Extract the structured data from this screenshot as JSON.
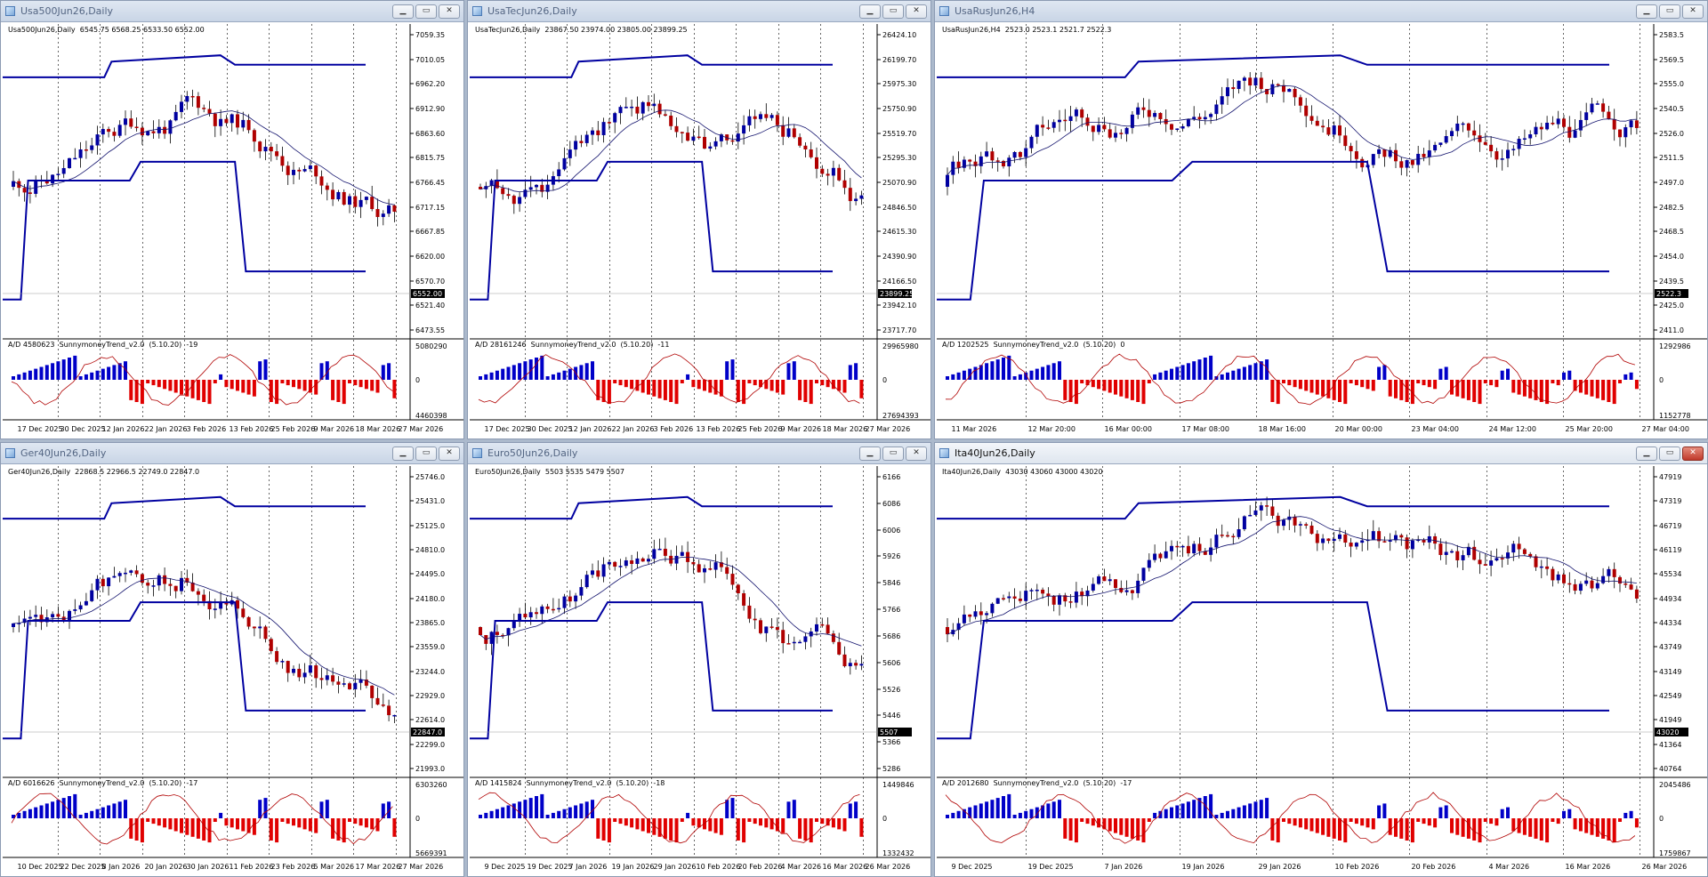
{
  "colors": {
    "bull": "#0000a0",
    "bear": "#b00000",
    "ma": "#14146e",
    "trend": "#0000a0",
    "ad": "#b00000",
    "histUp": "#0000c8",
    "histDown": "#e00000"
  },
  "windows": [
    {
      "title": "Usa500Jun26,Daily",
      "header": "Usa500Jun26,Daily  6545.75 6568.25 6533.50 6552.00",
      "ind_header": "A/D 4580623  SunnymoneyTrend_v2.0  (5.10.20)  -19",
      "price_ticks": [
        "7059.35",
        "7010.05",
        "6962.20",
        "6912.90",
        "6863.60",
        "6815.75",
        "6766.45",
        "6717.15",
        "6667.85",
        "6620.00",
        "6570.70",
        "6521.40",
        "6473.55"
      ],
      "last_price": "6552.00",
      "ind_ticks": [
        "5080290",
        "0",
        "4460398"
      ],
      "date_ticks": [
        "17 Dec 2025",
        "30 Dec 2025",
        "12 Jan 2026",
        "22 Jan 2026",
        "3 Feb 2026",
        "13 Feb 2026",
        "25 Feb 2026",
        "9 Mar 2026",
        "18 Mar 2026",
        "27 Mar 2026"
      ],
      "active": false
    },
    {
      "title": "UsaTecJun26,Daily",
      "header": "UsaTecJun26,Daily  23867.50 23974.00 23805.00 23899.25",
      "ind_header": "A/D 28161246  SunnymoneyTrend_v2.0  (5.10.20)  -11",
      "price_ticks": [
        "26424.10",
        "26199.70",
        "25975.30",
        "25750.90",
        "25519.70",
        "25295.30",
        "25070.90",
        "24846.50",
        "24615.30",
        "24390.90",
        "24166.50",
        "23942.10",
        "23717.70"
      ],
      "last_price": "23899.25",
      "ind_ticks": [
        "29965980",
        "0",
        "27694393"
      ],
      "date_ticks": [
        "17 Dec 2025",
        "30 Dec 2025",
        "12 Jan 2026",
        "22 Jan 2026",
        "3 Feb 2026",
        "13 Feb 2026",
        "25 Feb 2026",
        "9 Mar 2026",
        "18 Mar 2026",
        "27 Mar 2026"
      ],
      "active": false
    },
    {
      "title": "UsaRusJun26,H4",
      "header": "UsaRusJun26,H4  2523.0 2523.1 2521.7 2522.3",
      "ind_header": "A/D 1202525  SunnymoneyTrend_v2.0  (5.10.20)  0",
      "price_ticks": [
        "2583.5",
        "2569.5",
        "2555.0",
        "2540.5",
        "2526.0",
        "2511.5",
        "2497.0",
        "2482.5",
        "2468.5",
        "2454.0",
        "2439.5",
        "2425.0",
        "2411.0"
      ],
      "last_price": "2522.3",
      "ind_ticks": [
        "1292986",
        "0",
        "1152778"
      ],
      "date_ticks": [
        "11 Mar 2026",
        "12 Mar 20:00",
        "16 Mar 00:00",
        "17 Mar 08:00",
        "18 Mar 16:00",
        "20 Mar 00:00",
        "23 Mar 04:00",
        "24 Mar 12:00",
        "25 Mar 20:00",
        "27 Mar 04:00"
      ],
      "active": false
    },
    {
      "title": "Ger40Jun26,Daily",
      "header": "Ger40Jun26,Daily  22868.5 22966.5 22749.0 22847.0",
      "ind_header": "A/D 6016626  SunnymoneyTrend_v2.0  (5.10.20)  -17",
      "price_ticks": [
        "25746.0",
        "25431.0",
        "25125.0",
        "24810.0",
        "24495.0",
        "24180.0",
        "23865.0",
        "23559.0",
        "23244.0",
        "22929.0",
        "22614.0",
        "22299.0",
        "21993.0"
      ],
      "last_price": "22847.0",
      "ind_ticks": [
        "6303260",
        "0",
        "5669391"
      ],
      "date_ticks": [
        "10 Dec 2025",
        "22 Dec 2025",
        "8 Jan 2026",
        "20 Jan 2026",
        "30 Jan 2026",
        "11 Feb 2026",
        "23 Feb 2026",
        "5 Mar 2026",
        "17 Mar 2026",
        "27 Mar 2026"
      ],
      "active": false
    },
    {
      "title": "Euro50Jun26,Daily",
      "header": "Euro50Jun26,Daily  5503 5535 5479 5507",
      "ind_header": "A/D 1415824  SunnymoneyTrend_v2.0  (5.10.20)  -18",
      "price_ticks": [
        "6166",
        "6086",
        "6006",
        "5926",
        "5846",
        "5766",
        "5686",
        "5606",
        "5526",
        "5446",
        "5366",
        "5286"
      ],
      "last_price": "5507",
      "ind_ticks": [
        "1449846",
        "0",
        "1332432"
      ],
      "date_ticks": [
        "9 Dec 2025",
        "19 Dec 2025",
        "7 Jan 2026",
        "19 Jan 2026",
        "29 Jan 2026",
        "10 Feb 2026",
        "20 Feb 2026",
        "4 Mar 2026",
        "16 Mar 2026",
        "26 Mar 2026"
      ],
      "active": false
    },
    {
      "title": "Ita40Jun26,Daily",
      "header": "Ita40Jun26,Daily  43030 43060 43000 43020",
      "ind_header": "A/D 2012680  SunnymoneyTrend_v2.0  (5.10.20)  -17",
      "price_ticks": [
        "47919",
        "47319",
        "46719",
        "46119",
        "45534",
        "44934",
        "44334",
        "43749",
        "43149",
        "42549",
        "41949",
        "41364",
        "40764"
      ],
      "last_price": "43020",
      "ind_ticks": [
        "2045486",
        "0",
        "1759867"
      ],
      "date_ticks": [
        "9 Dec 2025",
        "19 Dec 2025",
        "7 Jan 2026",
        "19 Jan 2026",
        "29 Jan 2026",
        "10 Feb 2026",
        "20 Feb 2026",
        "4 Mar 2026",
        "16 Mar 2026",
        "26 Mar 2026"
      ],
      "active": true
    }
  ]
}
